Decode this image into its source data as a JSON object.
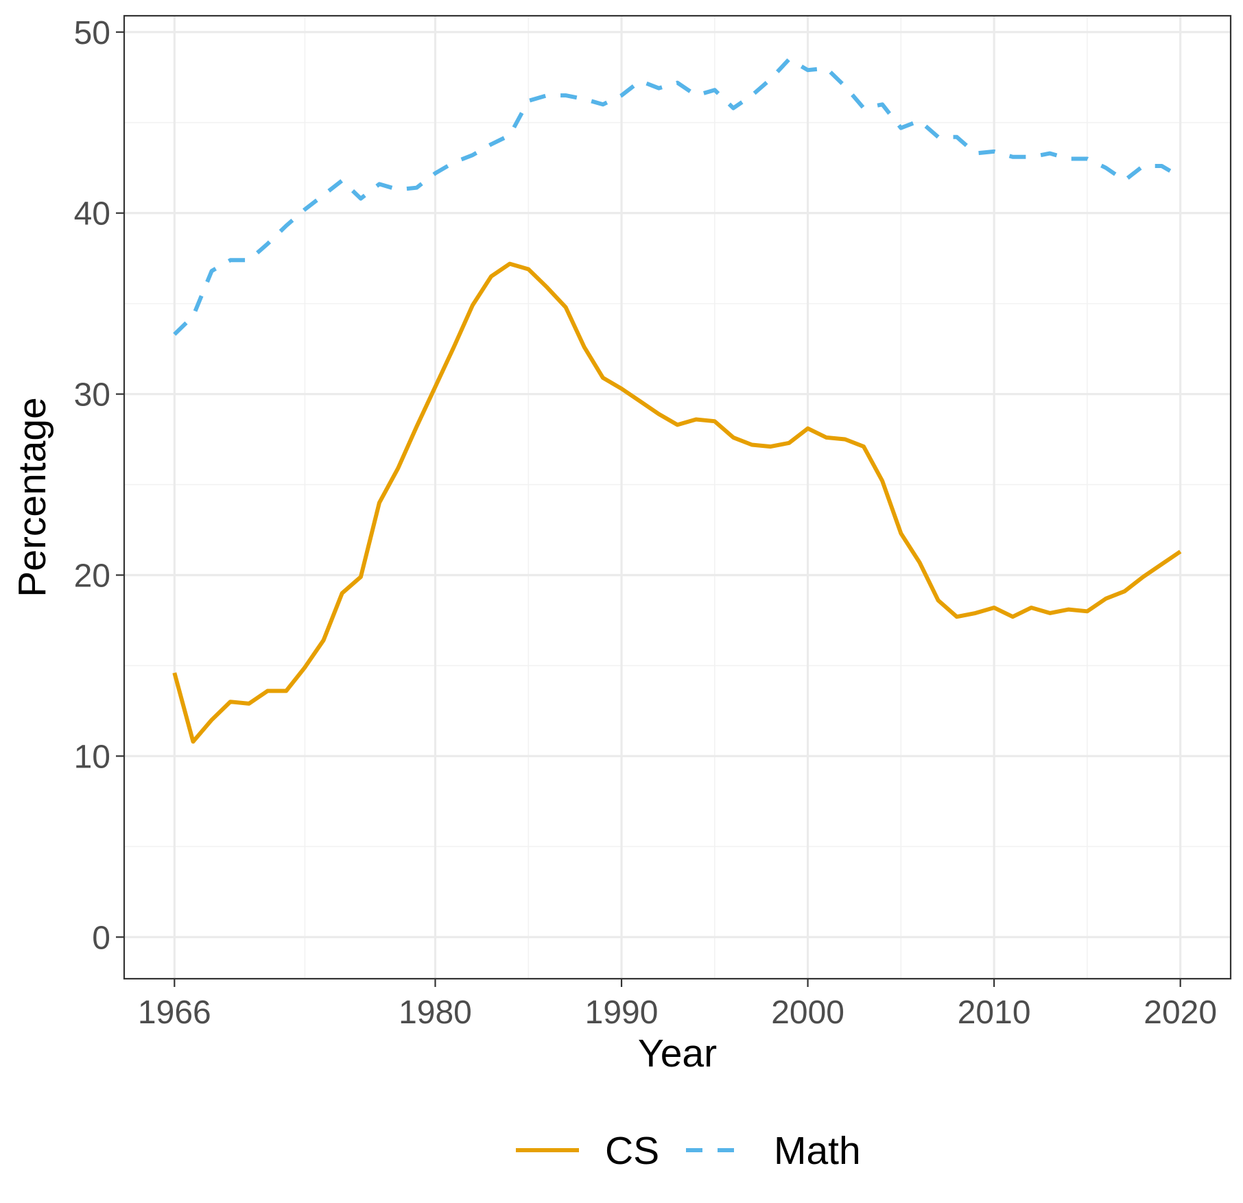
{
  "chart_data": {
    "type": "line",
    "xlabel": "Year",
    "ylabel": "Percentage",
    "xlim": [
      1963.3,
      2022.7
    ],
    "ylim": [
      -2.3,
      50.9
    ],
    "x_ticks": [
      1966,
      1980,
      1990,
      2000,
      2010,
      2020
    ],
    "x_minor_ticks": [
      1973,
      1985,
      1995,
      2005,
      2015
    ],
    "y_ticks": [
      0,
      10,
      20,
      30,
      40,
      50
    ],
    "y_minor_ticks": [
      5,
      15,
      25,
      35,
      45
    ],
    "grid": true,
    "legend_position": "bottom",
    "x": [
      1966,
      1967,
      1968,
      1969,
      1970,
      1971,
      1972,
      1973,
      1974,
      1975,
      1976,
      1977,
      1978,
      1979,
      1980,
      1981,
      1982,
      1983,
      1984,
      1985,
      1986,
      1987,
      1988,
      1989,
      1990,
      1991,
      1992,
      1993,
      1994,
      1995,
      1996,
      1997,
      1998,
      1999,
      2000,
      2001,
      2002,
      2003,
      2004,
      2005,
      2006,
      2007,
      2008,
      2009,
      2010,
      2011,
      2012,
      2013,
      2014,
      2015,
      2016,
      2017,
      2018,
      2019,
      2020
    ],
    "series": [
      {
        "name": "CS",
        "color": "#E69F00",
        "dash": "solid",
        "values": [
          14.6,
          10.8,
          12.0,
          13.0,
          12.9,
          13.6,
          13.6,
          14.9,
          16.4,
          19.0,
          19.9,
          24.0,
          25.9,
          28.2,
          30.4,
          32.6,
          34.9,
          36.5,
          37.2,
          36.9,
          35.9,
          34.8,
          32.6,
          30.9,
          30.3,
          29.6,
          28.9,
          28.3,
          28.6,
          28.5,
          27.6,
          27.2,
          27.1,
          27.3,
          28.1,
          27.6,
          27.5,
          27.1,
          25.2,
          22.3,
          20.7,
          18.6,
          17.7,
          17.9,
          18.2,
          17.7,
          18.2,
          17.9,
          18.1,
          18.0,
          18.7,
          19.1,
          19.9,
          20.6,
          21.3
        ]
      },
      {
        "name": "Math",
        "color": "#56B4E9",
        "dash": "dashed",
        "values": [
          33.3,
          34.3,
          36.8,
          37.4,
          37.4,
          38.3,
          39.3,
          40.2,
          41.0,
          41.8,
          40.8,
          41.6,
          41.3,
          41.4,
          42.2,
          42.8,
          43.2,
          43.8,
          44.3,
          46.2,
          46.5,
          46.5,
          46.3,
          46.0,
          46.5,
          47.3,
          46.9,
          47.2,
          46.5,
          46.8,
          45.8,
          46.5,
          47.4,
          48.5,
          47.9,
          48.0,
          47.0,
          45.8,
          46.0,
          44.7,
          45.1,
          44.2,
          44.2,
          43.3,
          43.4,
          43.1,
          43.1,
          43.3,
          43.0,
          43.0,
          42.5,
          41.8,
          42.6,
          42.6,
          42.0
        ]
      }
    ]
  }
}
